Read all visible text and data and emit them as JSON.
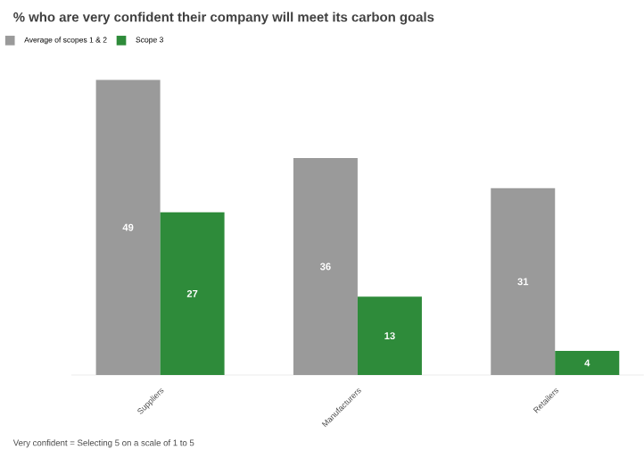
{
  "chart_data": {
    "type": "bar",
    "title": "% who are very confident their company will meet its carbon goals",
    "categories": [
      "Suppliers",
      "Manufacturers",
      "Retailers"
    ],
    "series": [
      {
        "name": "Average of scopes 1 & 2",
        "color": "#9a9a9a",
        "values": [
          49,
          36,
          31
        ]
      },
      {
        "name": "Scope 3",
        "color": "#2e8b3a",
        "values": [
          27,
          13,
          4
        ]
      }
    ],
    "data_labels": true,
    "legend": "top left",
    "annotations": [
      "Very confident = Selecting 5 on a scale of 1 to 5"
    ]
  }
}
